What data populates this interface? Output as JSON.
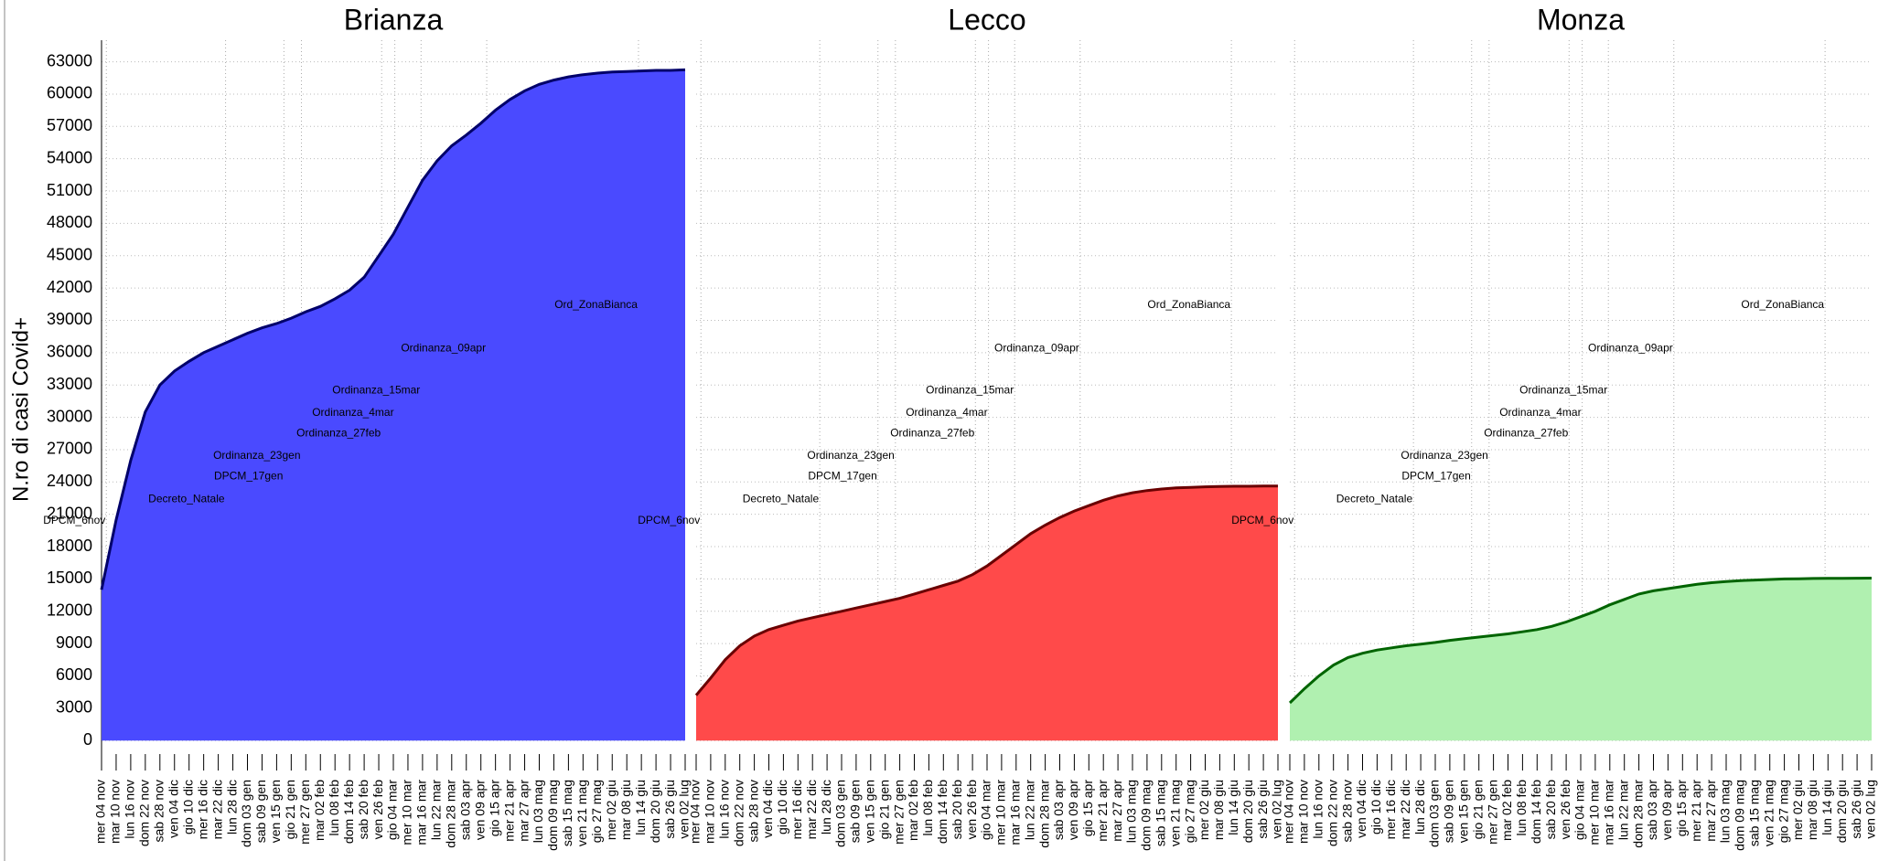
{
  "chart_data": [
    {
      "type": "area",
      "title": "Brianza",
      "ylabel": "N.ro di casi Covid+",
      "color": "#4a4aff",
      "line_color": "#00006a",
      "annotation_color": "#6a6a6a",
      "categories": [
        "mer 04 nov",
        "mar 10 nov",
        "lun 16 nov",
        "dom 22 nov",
        "sab 28 nov",
        "ven 04 dic",
        "gio 10 dic",
        "mer 16 dic",
        "mar 22 dic",
        "lun 28 dic",
        "dom 03 gen",
        "sab 09 gen",
        "ven 15 gen",
        "gio 21 gen",
        "mer 27 gen",
        "mar 02 feb",
        "lun 08 feb",
        "dom 14 feb",
        "sab 20 feb",
        "ven 26 feb",
        "gio 04 mar",
        "mer 10 mar",
        "mar 16 mar",
        "lun 22 mar",
        "dom 28 mar",
        "sab 03 apr",
        "ven 09 apr",
        "gio 15 apr",
        "mer 21 apr",
        "mar 27 apr",
        "lun 03 mag",
        "dom 09 mag",
        "sab 15 mag",
        "ven 21 mag",
        "gio 27 mag",
        "mer 02 giu",
        "mar 08 giu",
        "lun 14 giu",
        "dom 20 giu",
        "sab 26 giu",
        "ven 02 lug"
      ],
      "values": [
        14000,
        20500,
        26000,
        30500,
        33000,
        34300,
        35200,
        36000,
        36600,
        37200,
        37800,
        38300,
        38700,
        39200,
        39800,
        40300,
        41000,
        41800,
        43000,
        45000,
        47000,
        49500,
        52000,
        53800,
        55200,
        56200,
        57300,
        58500,
        59500,
        60300,
        60900,
        61300,
        61600,
        61800,
        61950,
        62050,
        62100,
        62150,
        62200,
        62200,
        62250
      ],
      "ylim": [
        -1000,
        65000
      ],
      "yticks": [
        0,
        3000,
        6000,
        9000,
        12000,
        15000,
        18000,
        21000,
        24000,
        27000,
        30000,
        33000,
        36000,
        39000,
        42000,
        45000,
        48000,
        51000,
        54000,
        57000,
        60000,
        63000
      ],
      "annotations": [
        {
          "text": "DPCM_6nov",
          "x": 0.33,
          "y": 20400
        },
        {
          "text": "Decreto_Natale",
          "x": 8.5,
          "y": 22400
        },
        {
          "text": "DPCM_17gen",
          "x": 12.5,
          "y": 24500
        },
        {
          "text": "Ordinanza_23gen",
          "x": 13.7,
          "y": 26400
        },
        {
          "text": "Ordinanza_27feb",
          "x": 19.2,
          "y": 28500
        },
        {
          "text": "Ordinanza_4mar",
          "x": 20.1,
          "y": 30400
        },
        {
          "text": "Ordinanza_15mar",
          "x": 21.9,
          "y": 32500
        },
        {
          "text": "Ordinanza_09apr",
          "x": 26.4,
          "y": 36400
        },
        {
          "text": "Ord_ZonaBianca",
          "x": 36.8,
          "y": 40400
        }
      ]
    },
    {
      "type": "area",
      "title": "Lecco",
      "color": "#ff4a4a",
      "line_color": "#6a0000",
      "annotation_color": "#555555",
      "categories": [
        "mer 04 nov",
        "mar 10 nov",
        "lun 16 nov",
        "dom 22 nov",
        "sab 28 nov",
        "ven 04 dic",
        "gio 10 dic",
        "mer 16 dic",
        "mar 22 dic",
        "lun 28 dic",
        "dom 03 gen",
        "sab 09 gen",
        "ven 15 gen",
        "gio 21 gen",
        "mer 27 gen",
        "mar 02 feb",
        "lun 08 feb",
        "dom 14 feb",
        "sab 20 feb",
        "ven 26 feb",
        "gio 04 mar",
        "mer 10 mar",
        "mar 16 mar",
        "lun 22 mar",
        "dom 28 mar",
        "sab 03 apr",
        "ven 09 apr",
        "gio 15 apr",
        "mer 21 apr",
        "mar 27 apr",
        "lun 03 mag",
        "dom 09 mag",
        "sab 15 mag",
        "ven 21 mag",
        "gio 27 mag",
        "mer 02 giu",
        "mar 08 giu",
        "lun 14 giu",
        "dom 20 giu",
        "sab 26 giu",
        "ven 02 lug"
      ],
      "values": [
        4200,
        5800,
        7500,
        8800,
        9700,
        10300,
        10700,
        11100,
        11400,
        11700,
        12000,
        12300,
        12600,
        12900,
        13200,
        13600,
        14000,
        14400,
        14800,
        15400,
        16200,
        17200,
        18200,
        19200,
        20000,
        20700,
        21300,
        21800,
        22300,
        22700,
        23000,
        23200,
        23350,
        23450,
        23500,
        23550,
        23580,
        23600,
        23600,
        23620,
        23630
      ],
      "ylim": [
        -1000,
        65000
      ],
      "annotations": [
        {
          "text": "DPCM_6nov",
          "x": 0.33,
          "y": 20400
        },
        {
          "text": "Decreto_Natale",
          "x": 8.5,
          "y": 22400
        },
        {
          "text": "DPCM_17gen",
          "x": 12.5,
          "y": 24500
        },
        {
          "text": "Ordinanza_23gen",
          "x": 13.7,
          "y": 26400
        },
        {
          "text": "Ordinanza_27feb",
          "x": 19.2,
          "y": 28500
        },
        {
          "text": "Ordinanza_4mar",
          "x": 20.1,
          "y": 30400
        },
        {
          "text": "Ordinanza_15mar",
          "x": 21.9,
          "y": 32500
        },
        {
          "text": "Ordinanza_09apr",
          "x": 26.4,
          "y": 36400
        },
        {
          "text": "Ord_ZonaBianca",
          "x": 36.8,
          "y": 40400
        }
      ]
    },
    {
      "type": "area",
      "title": "Monza",
      "color": "#b0f0b0",
      "line_color": "#006400",
      "annotation_color": "#555555",
      "categories": [
        "mer 04 nov",
        "mar 10 nov",
        "lun 16 nov",
        "dom 22 nov",
        "sab 28 nov",
        "ven 04 dic",
        "gio 10 dic",
        "mer 16 dic",
        "mar 22 dic",
        "lun 28 dic",
        "dom 03 gen",
        "sab 09 gen",
        "ven 15 gen",
        "gio 21 gen",
        "mer 27 gen",
        "mar 02 feb",
        "lun 08 feb",
        "dom 14 feb",
        "sab 20 feb",
        "ven 26 feb",
        "gio 04 mar",
        "mer 10 mar",
        "mar 16 mar",
        "lun 22 mar",
        "dom 28 mar",
        "sab 03 apr",
        "ven 09 apr",
        "gio 15 apr",
        "mer 21 apr",
        "mar 27 apr",
        "lun 03 mag",
        "dom 09 mag",
        "sab 15 mag",
        "ven 21 mag",
        "gio 27 mag",
        "mer 02 giu",
        "mar 08 giu",
        "lun 14 giu",
        "dom 20 giu",
        "sab 26 giu",
        "ven 02 lug"
      ],
      "values": [
        3500,
        4800,
        6000,
        7000,
        7700,
        8100,
        8400,
        8600,
        8800,
        8950,
        9100,
        9300,
        9450,
        9600,
        9750,
        9900,
        10100,
        10300,
        10600,
        11000,
        11500,
        12000,
        12600,
        13100,
        13600,
        13900,
        14100,
        14300,
        14500,
        14650,
        14750,
        14850,
        14900,
        14950,
        15000,
        15020,
        15040,
        15050,
        15060,
        15070,
        15080
      ],
      "ylim": [
        -1000,
        65000
      ],
      "annotations": [
        {
          "text": "DPCM_6nov",
          "x": 0.33,
          "y": 20400
        },
        {
          "text": "Decreto_Natale",
          "x": 8.5,
          "y": 22400
        },
        {
          "text": "DPCM_17gen",
          "x": 12.5,
          "y": 24500
        },
        {
          "text": "Ordinanza_23gen",
          "x": 13.7,
          "y": 26400
        },
        {
          "text": "Ordinanza_27feb",
          "x": 19.2,
          "y": 28500
        },
        {
          "text": "Ordinanza_4mar",
          "x": 20.1,
          "y": 30400
        },
        {
          "text": "Ordinanza_15mar",
          "x": 21.9,
          "y": 32500
        },
        {
          "text": "Ordinanza_09apr",
          "x": 26.4,
          "y": 36400
        },
        {
          "text": "Ord_ZonaBianca",
          "x": 36.8,
          "y": 40400
        }
      ]
    }
  ]
}
